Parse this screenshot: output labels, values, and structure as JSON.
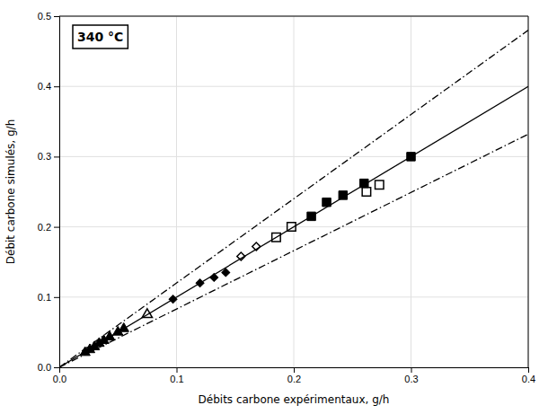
{
  "chart_data": {
    "type": "scatter",
    "title": "340 °C",
    "x_label": "Débits carbone expérimentaux, g/h",
    "y_label": "Débit carbone simulés, g/h",
    "xlim": [
      0.0,
      0.4
    ],
    "ylim": [
      0.0,
      0.5
    ],
    "xticks": [
      {
        "value": 0.0,
        "label": "0.0"
      },
      0.1,
      0.2,
      0.3,
      0.4
    ],
    "yticks": [
      {
        "value": 0.0,
        "label": "0.0"
      },
      0.1,
      0.2,
      0.3,
      0.4,
      0.5
    ],
    "grid": true,
    "series": [
      {
        "type": "line",
        "color": "#000000",
        "line_style": "solid",
        "x": [
          0,
          0.4
        ],
        "values": [
          0,
          0.4
        ]
      },
      {
        "type": "line",
        "color": "#000000",
        "line_style": "dashdot",
        "x": [
          0.0,
          0.4
        ],
        "values": [
          0.0,
          0.48
        ]
      },
      {
        "type": "line",
        "color": "#000000",
        "line_style": "dashdot",
        "x": [
          0.0,
          0.4
        ],
        "values": [
          0.0,
          0.332
        ]
      },
      {
        "type": "scatter",
        "color": "#000000",
        "marker": "triangle",
        "x": [
          0.022,
          0.026,
          0.03,
          0.034,
          0.038,
          0.043,
          0.05,
          0.055
        ],
        "values": [
          0.021,
          0.025,
          0.029,
          0.034,
          0.038,
          0.043,
          0.05,
          0.055
        ]
      },
      {
        "type": "scatter",
        "color": "#000000",
        "marker": "triangle-open",
        "x": [
          0.075
        ],
        "values": [
          0.075
        ]
      },
      {
        "type": "scatter",
        "color": "#000000",
        "marker": "diamond",
        "x": [
          0.097,
          0.12,
          0.132,
          0.142
        ],
        "values": [
          0.097,
          0.12,
          0.128,
          0.135
        ]
      },
      {
        "type": "scatter",
        "color": "#000000",
        "marker": "diamond-open",
        "x": [
          0.155,
          0.168
        ],
        "values": [
          0.158,
          0.172
        ]
      },
      {
        "type": "scatter",
        "color": "#000000",
        "marker": "square-open",
        "x": [
          0.185,
          0.198,
          0.262,
          0.273
        ],
        "values": [
          0.185,
          0.2,
          0.25,
          0.26
        ]
      },
      {
        "type": "scatter",
        "color": "#000000",
        "marker": "square",
        "x": [
          0.215,
          0.228,
          0.242,
          0.26,
          0.3
        ],
        "values": [
          0.215,
          0.235,
          0.245,
          0.262,
          0.3
        ]
      }
    ]
  }
}
